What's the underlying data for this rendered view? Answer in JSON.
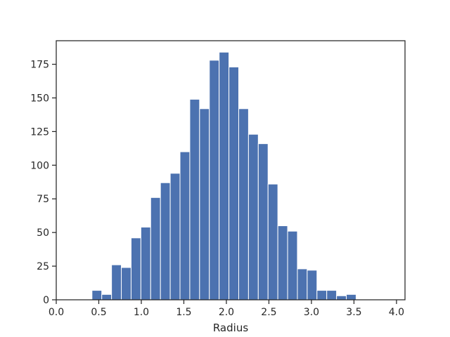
{
  "chart_data": {
    "type": "bar",
    "subtype": "histogram",
    "title": "",
    "xlabel": "Radius",
    "ylabel": "",
    "xlim": [
      0.0,
      4.1
    ],
    "ylim": [
      0,
      192.5
    ],
    "xticks": [
      0.0,
      0.5,
      1.0,
      1.5,
      2.0,
      2.5,
      3.0,
      3.5,
      4.0
    ],
    "xtick_labels": [
      "0.0",
      "0.5",
      "1.0",
      "1.5",
      "2.0",
      "2.5",
      "3.0",
      "3.5",
      "4.0"
    ],
    "yticks": [
      0,
      25,
      50,
      75,
      100,
      125,
      150,
      175
    ],
    "ytick_labels": [
      "0",
      "25",
      "50",
      "75",
      "100",
      "125",
      "150",
      "175"
    ],
    "bins": [
      {
        "start": 0.42,
        "end": 0.535,
        "count": 7
      },
      {
        "start": 0.535,
        "end": 0.65,
        "count": 4
      },
      {
        "start": 0.65,
        "end": 0.765,
        "count": 26
      },
      {
        "start": 0.765,
        "end": 0.88,
        "count": 24
      },
      {
        "start": 0.88,
        "end": 0.995,
        "count": 46
      },
      {
        "start": 0.995,
        "end": 1.11,
        "count": 54
      },
      {
        "start": 1.11,
        "end": 1.225,
        "count": 76
      },
      {
        "start": 1.225,
        "end": 1.34,
        "count": 87
      },
      {
        "start": 1.34,
        "end": 1.455,
        "count": 94
      },
      {
        "start": 1.455,
        "end": 1.57,
        "count": 110
      },
      {
        "start": 1.57,
        "end": 1.685,
        "count": 149
      },
      {
        "start": 1.685,
        "end": 1.8,
        "count": 142
      },
      {
        "start": 1.8,
        "end": 1.915,
        "count": 178
      },
      {
        "start": 1.915,
        "end": 2.03,
        "count": 184
      },
      {
        "start": 2.03,
        "end": 2.145,
        "count": 173
      },
      {
        "start": 2.145,
        "end": 2.26,
        "count": 142
      },
      {
        "start": 2.26,
        "end": 2.375,
        "count": 123
      },
      {
        "start": 2.375,
        "end": 2.49,
        "count": 116
      },
      {
        "start": 2.49,
        "end": 2.605,
        "count": 86
      },
      {
        "start": 2.605,
        "end": 2.72,
        "count": 55
      },
      {
        "start": 2.72,
        "end": 2.835,
        "count": 51
      },
      {
        "start": 2.835,
        "end": 2.95,
        "count": 23
      },
      {
        "start": 2.95,
        "end": 3.065,
        "count": 22
      },
      {
        "start": 3.065,
        "end": 3.18,
        "count": 7
      },
      {
        "start": 3.18,
        "end": 3.295,
        "count": 7
      },
      {
        "start": 3.295,
        "end": 3.41,
        "count": 3
      },
      {
        "start": 3.41,
        "end": 3.525,
        "count": 4
      },
      {
        "start": 3.525,
        "end": 3.64,
        "count": 0
      }
    ],
    "grid": false,
    "colors": {
      "bar_fill": "#4c72b0",
      "bar_edge": "#ffffff",
      "axis": "#262626",
      "background": "#ffffff"
    }
  }
}
